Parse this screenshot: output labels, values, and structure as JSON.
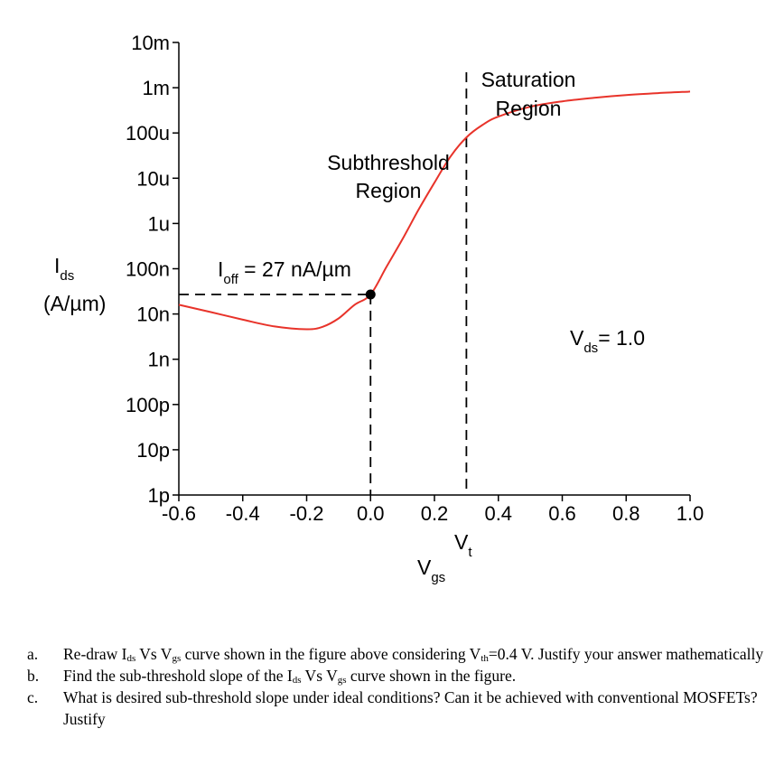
{
  "chart_data": {
    "type": "line",
    "ylabel_main": "I",
    "ylabel_sub": "ds",
    "ylabel_units": "(A/µm)",
    "xlabel_main": "V",
    "xlabel_sub": "gs",
    "xlim": [
      -0.6,
      1.0
    ],
    "ylim": [
      "1p",
      "10m"
    ],
    "yscale": "log",
    "xticks": [
      {
        "v": -0.6,
        "label": "-0.6"
      },
      {
        "v": -0.4,
        "label": "-0.4"
      },
      {
        "v": -0.2,
        "label": "-0.2"
      },
      {
        "v": 0.0,
        "label": "0.0"
      },
      {
        "v": 0.2,
        "label": "0.2"
      },
      {
        "v": 0.4,
        "label": "0.4"
      },
      {
        "v": 0.6,
        "label": "0.6"
      },
      {
        "v": 0.8,
        "label": "0.8"
      },
      {
        "v": 1.0,
        "label": "1.0"
      }
    ],
    "yticks": [
      {
        "v": 1e-12,
        "label": "1p"
      },
      {
        "v": 1e-11,
        "label": "10p"
      },
      {
        "v": 1e-10,
        "label": "100p"
      },
      {
        "v": 1e-09,
        "label": "1n"
      },
      {
        "v": 1e-08,
        "label": "10n"
      },
      {
        "v": 1e-07,
        "label": "100n"
      },
      {
        "v": 1e-06,
        "label": "1u"
      },
      {
        "v": 1e-05,
        "label": "10u"
      },
      {
        "v": 0.0001,
        "label": "100u"
      },
      {
        "v": 0.001,
        "label": "1m"
      },
      {
        "v": 0.01,
        "label": "10m"
      }
    ],
    "series": [
      {
        "color": "#e8332a",
        "points": [
          [
            -0.6,
            1.6e-08
          ],
          [
            -0.5,
            1.1e-08
          ],
          [
            -0.4,
            7.5e-09
          ],
          [
            -0.3,
            5.3e-09
          ],
          [
            -0.2,
            4.6e-09
          ],
          [
            -0.15,
            5.2e-09
          ],
          [
            -0.1,
            8e-09
          ],
          [
            -0.05,
            1.6e-08
          ],
          [
            0.0,
            2.7e-08
          ],
          [
            0.05,
            1.1e-07
          ],
          [
            0.1,
            4.5e-07
          ],
          [
            0.15,
            2e-06
          ],
          [
            0.2,
            8e-06
          ],
          [
            0.25,
            3e-05
          ],
          [
            0.3,
            8e-05
          ],
          [
            0.35,
            0.00015
          ],
          [
            0.4,
            0.00023
          ],
          [
            0.5,
            0.00038
          ],
          [
            0.6,
            0.0005
          ],
          [
            0.7,
            0.0006
          ],
          [
            0.8,
            0.00069
          ],
          [
            0.9,
            0.00076
          ],
          [
            1.0,
            0.00082
          ]
        ]
      }
    ],
    "marker": {
      "x": 0.0,
      "y": 2.7e-08
    },
    "vt": {
      "x": 0.3,
      "main": "V",
      "sub": "t"
    },
    "ioff": {
      "main": "I",
      "sub": "off",
      "rest": " = 27 nA/µm"
    },
    "vds": {
      "main": "V",
      "sub": "ds",
      "rest": "= 1.0"
    },
    "region_subthreshold": [
      "Subthreshold",
      "Region"
    ],
    "region_saturation": [
      "Saturation",
      "Region"
    ],
    "grid": false,
    "legend": "none"
  },
  "questions": [
    {
      "label": "a.",
      "parts": [
        {
          "t": "Re-draw I"
        },
        {
          "t": "ds",
          "sub": true
        },
        {
          "t": " Vs V"
        },
        {
          "t": "gs",
          "sub": true
        },
        {
          "t": " curve shown in the figure above considering V"
        },
        {
          "t": "th",
          "sub": true
        },
        {
          "t": "=0.4 V. Justify your answer mathematically"
        }
      ]
    },
    {
      "label": "b.",
      "parts": [
        {
          "t": "Find the sub-threshold slope of the I"
        },
        {
          "t": "ds",
          "sub": true
        },
        {
          "t": " Vs V"
        },
        {
          "t": "gs",
          "sub": true
        },
        {
          "t": " curve shown in the figure."
        }
      ]
    },
    {
      "label": "c.",
      "parts": [
        {
          "t": "What is desired sub-threshold slope under ideal conditions? Can it be achieved with conventional MOSFETs? Justify"
        }
      ]
    }
  ]
}
